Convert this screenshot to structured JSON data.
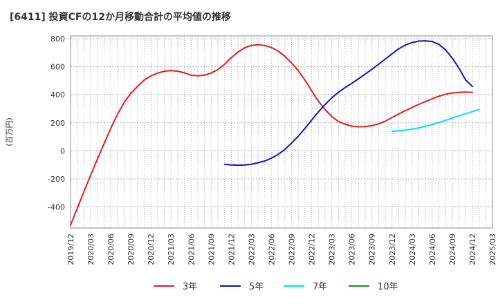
{
  "chart_data": {
    "type": "line",
    "title": "[6411]  投資CFの12か月移動合計の平均値の推移",
    "ylabel": "(百万円)",
    "xlabel": "",
    "ylim": [
      -550,
      820
    ],
    "yticks": [
      -400,
      -200,
      0,
      200,
      400,
      600,
      800
    ],
    "xtick_labels": [
      "2019/12",
      "2020/03",
      "2020/06",
      "2020/09",
      "2020/12",
      "2021/03",
      "2021/06",
      "2021/09",
      "2021/12",
      "2022/03",
      "2022/06",
      "2022/09",
      "2022/12",
      "2023/03",
      "2023/06",
      "2023/09",
      "2023/12",
      "2024/03",
      "2024/06",
      "2024/09",
      "2024/12",
      "2025/03"
    ],
    "grid": true,
    "legend_position": "bottom",
    "series": [
      {
        "name": "3年",
        "color": "#e31a1c",
        "points": [
          [
            "2019/12",
            -530
          ],
          [
            "2020/01",
            -410
          ],
          [
            "2020/02",
            -290
          ],
          [
            "2020/03",
            -175
          ],
          [
            "2020/04",
            -60
          ],
          [
            "2020/05",
            50
          ],
          [
            "2020/06",
            160
          ],
          [
            "2020/07",
            260
          ],
          [
            "2020/08",
            345
          ],
          [
            "2020/09",
            410
          ],
          [
            "2020/10",
            460
          ],
          [
            "2020/11",
            505
          ],
          [
            "2020/12",
            535
          ],
          [
            "2021/01",
            555
          ],
          [
            "2021/02",
            568
          ],
          [
            "2021/03",
            573
          ],
          [
            "2021/04",
            568
          ],
          [
            "2021/05",
            557
          ],
          [
            "2021/06",
            540
          ],
          [
            "2021/07",
            535
          ],
          [
            "2021/08",
            540
          ],
          [
            "2021/09",
            555
          ],
          [
            "2021/10",
            580
          ],
          [
            "2021/11",
            618
          ],
          [
            "2021/12",
            665
          ],
          [
            "2022/01",
            705
          ],
          [
            "2022/02",
            735
          ],
          [
            "2022/03",
            752
          ],
          [
            "2022/04",
            757
          ],
          [
            "2022/05",
            752
          ],
          [
            "2022/06",
            737
          ],
          [
            "2022/07",
            712
          ],
          [
            "2022/08",
            675
          ],
          [
            "2022/09",
            628
          ],
          [
            "2022/10",
            572
          ],
          [
            "2022/11",
            505
          ],
          [
            "2022/12",
            428
          ],
          [
            "2023/01",
            355
          ],
          [
            "2023/02",
            295
          ],
          [
            "2023/03",
            245
          ],
          [
            "2023/04",
            210
          ],
          [
            "2023/05",
            190
          ],
          [
            "2023/06",
            177
          ],
          [
            "2023/07",
            172
          ],
          [
            "2023/08",
            173
          ],
          [
            "2023/09",
            180
          ],
          [
            "2023/10",
            193
          ],
          [
            "2023/11",
            212
          ],
          [
            "2023/12",
            238
          ],
          [
            "2024/01",
            263
          ],
          [
            "2024/02",
            287
          ],
          [
            "2024/03",
            310
          ],
          [
            "2024/04",
            332
          ],
          [
            "2024/05",
            352
          ],
          [
            "2024/06",
            372
          ],
          [
            "2024/07",
            390
          ],
          [
            "2024/08",
            404
          ],
          [
            "2024/09",
            413
          ],
          [
            "2024/10",
            418
          ],
          [
            "2024/11",
            420
          ],
          [
            "2024/12",
            418
          ]
        ]
      },
      {
        "name": "5年",
        "color": "#1010c0",
        "points": [
          [
            "2021/11",
            -95
          ],
          [
            "2021/12",
            -100
          ],
          [
            "2022/01",
            -102
          ],
          [
            "2022/02",
            -100
          ],
          [
            "2022/03",
            -95
          ],
          [
            "2022/04",
            -85
          ],
          [
            "2022/05",
            -72
          ],
          [
            "2022/06",
            -52
          ],
          [
            "2022/07",
            -25
          ],
          [
            "2022/08",
            10
          ],
          [
            "2022/09",
            55
          ],
          [
            "2022/10",
            105
          ],
          [
            "2022/11",
            160
          ],
          [
            "2022/12",
            220
          ],
          [
            "2023/01",
            278
          ],
          [
            "2023/02",
            330
          ],
          [
            "2023/03",
            378
          ],
          [
            "2023/04",
            418
          ],
          [
            "2023/05",
            452
          ],
          [
            "2023/06",
            482
          ],
          [
            "2023/07",
            515
          ],
          [
            "2023/08",
            548
          ],
          [
            "2023/09",
            582
          ],
          [
            "2023/10",
            618
          ],
          [
            "2023/11",
            655
          ],
          [
            "2023/12",
            693
          ],
          [
            "2024/01",
            728
          ],
          [
            "2024/02",
            755
          ],
          [
            "2024/03",
            773
          ],
          [
            "2024/04",
            783
          ],
          [
            "2024/05",
            785
          ],
          [
            "2024/06",
            780
          ],
          [
            "2024/07",
            760
          ],
          [
            "2024/08",
            720
          ],
          [
            "2024/09",
            662
          ],
          [
            "2024/10",
            590
          ],
          [
            "2024/11",
            505
          ],
          [
            "2024/12",
            460
          ]
        ]
      },
      {
        "name": "7年",
        "color": "#00e5ee",
        "points": [
          [
            "2023/12",
            140
          ],
          [
            "2024/01",
            143
          ],
          [
            "2024/02",
            148
          ],
          [
            "2024/03",
            155
          ],
          [
            "2024/04",
            164
          ],
          [
            "2024/05",
            175
          ],
          [
            "2024/06",
            188
          ],
          [
            "2024/07",
            203
          ],
          [
            "2024/08",
            218
          ],
          [
            "2024/09",
            233
          ],
          [
            "2024/10",
            250
          ],
          [
            "2024/11",
            266
          ],
          [
            "2024/12",
            280
          ],
          [
            "2025/01",
            295
          ]
        ]
      },
      {
        "name": "10年",
        "color": "#1a8a1a",
        "points": []
      }
    ]
  }
}
